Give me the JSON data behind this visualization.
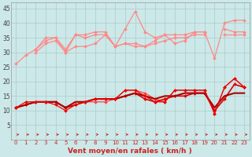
{
  "background_color": "#cce8e8",
  "grid_color": "#aacccc",
  "xlabel": "Vent moyen/en rafales ( km/h )",
  "x_ticks": [
    0,
    1,
    2,
    3,
    4,
    5,
    6,
    7,
    8,
    9,
    10,
    11,
    12,
    13,
    14,
    15,
    16,
    17,
    18,
    19,
    20,
    21,
    22,
    23
  ],
  "ylim": [
    0,
    47
  ],
  "yticks": [
    5,
    10,
    15,
    20,
    25,
    30,
    35,
    40,
    45
  ],
  "series": [
    {
      "color": "#ff8888",
      "lw": 0.9,
      "marker": "D",
      "ms": 2.0,
      "values": [
        26,
        29,
        31,
        35,
        35,
        31,
        36,
        36,
        37,
        37,
        32,
        38,
        44,
        37,
        35,
        36,
        33,
        34,
        37,
        37,
        28,
        40,
        41,
        41
      ]
    },
    {
      "color": "#ff8888",
      "lw": 0.9,
      "marker": "D",
      "ms": 2.0,
      "values": [
        null,
        null,
        31,
        34,
        35,
        30,
        36,
        35,
        36,
        36,
        32,
        33,
        33,
        32,
        34,
        36,
        36,
        36,
        37,
        37,
        null,
        38,
        37,
        37
      ]
    },
    {
      "color": "#ff8888",
      "lw": 0.9,
      "marker": "D",
      "ms": 2.0,
      "values": [
        null,
        null,
        30,
        33,
        34,
        30,
        32,
        32,
        33,
        36,
        32,
        33,
        32,
        32,
        33,
        34,
        35,
        35,
        36,
        36,
        null,
        36,
        36,
        36
      ]
    },
    {
      "color": "#ff4444",
      "lw": 0.9,
      "marker": "D",
      "ms": 2.0,
      "values": [
        11,
        12,
        13,
        13,
        13,
        11,
        12,
        13,
        13,
        13,
        14,
        17,
        17,
        16,
        14,
        13,
        17,
        17,
        17,
        17,
        9,
        18,
        21,
        18
      ]
    },
    {
      "color": "#dd0000",
      "lw": 1.2,
      "marker": "D",
      "ms": 2.0,
      "values": [
        11,
        12,
        13,
        13,
        13,
        11,
        12,
        13,
        14,
        14,
        14,
        15,
        16,
        14,
        13,
        14,
        15,
        15,
        16,
        16,
        10,
        14,
        19,
        18
      ]
    },
    {
      "color": "#aa0000",
      "lw": 1.5,
      "marker": null,
      "ms": 0,
      "values": [
        11,
        12,
        13,
        13,
        13,
        11,
        13,
        13,
        14,
        14,
        14,
        15,
        16,
        15,
        14,
        15,
        15,
        16,
        16,
        16,
        11,
        15,
        16,
        16
      ]
    },
    {
      "color": "#ee0000",
      "lw": 0.9,
      "marker": "D",
      "ms": 2.0,
      "values": [
        11,
        13,
        13,
        13,
        12,
        10,
        12,
        13,
        14,
        14,
        14,
        17,
        17,
        15,
        13,
        13,
        17,
        17,
        17,
        17,
        9,
        18,
        21,
        18
      ]
    }
  ],
  "arrow_color": "#cc2222",
  "xlabel_color": "#cc2222",
  "xlabel_fontsize": 6.5,
  "xlabel_fontweight": "bold",
  "tick_label_color": "#cc2222",
  "tick_label_fontsize": 5.0,
  "ytick_label_color": "#444444",
  "ytick_label_fontsize": 5.5
}
